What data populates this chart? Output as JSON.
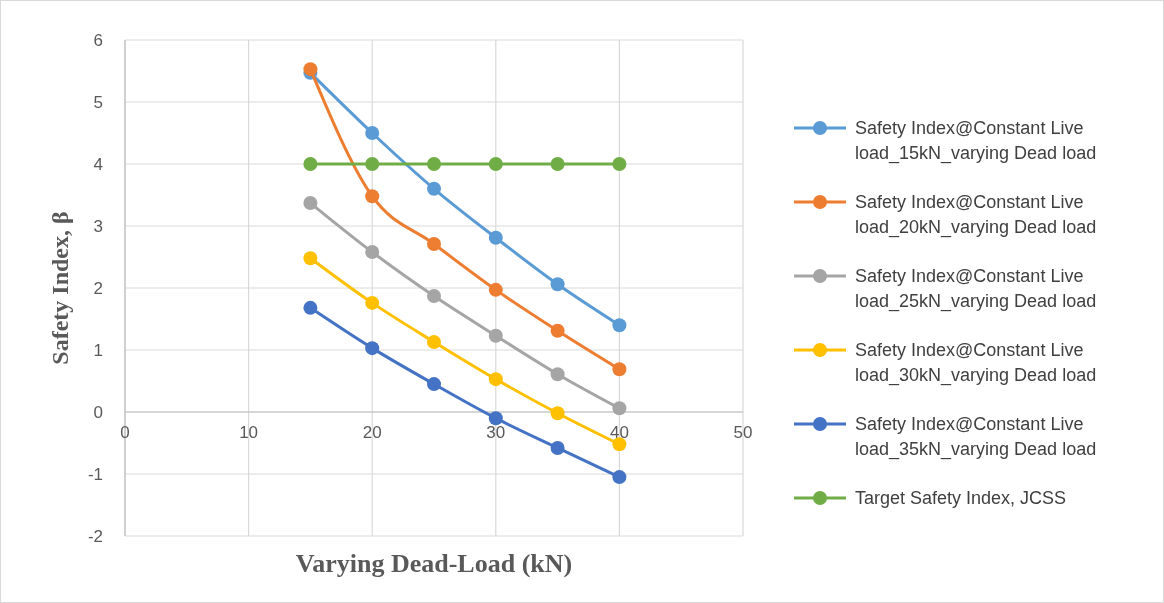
{
  "chart_data": {
    "type": "line",
    "xlabel": "Varying Dead-Load (kN)",
    "ylabel": "Safety Index, β",
    "x": [
      15,
      20,
      25,
      30,
      35,
      40
    ],
    "series": [
      {
        "name": "Safety Index@Constant Live load_15kN_varying Dead load",
        "color": "#5b9bd5",
        "values": [
          5.47,
          4.5,
          3.6,
          2.81,
          2.06,
          1.4
        ]
      },
      {
        "name": "Safety Index@Constant Live load_20kN_varying Dead load",
        "color": "#ed7d31",
        "values": [
          5.53,
          3.48,
          2.71,
          1.97,
          1.31,
          0.69
        ]
      },
      {
        "name": "Safety Index@Constant Live load_25kN_varying Dead load",
        "color": "#a5a5a5",
        "values": [
          3.37,
          2.58,
          1.87,
          1.23,
          0.61,
          0.06
        ]
      },
      {
        "name": "Safety Index@Constant Live load_30kN_varying Dead load",
        "color": "#ffc000",
        "values": [
          2.48,
          1.76,
          1.13,
          0.53,
          -0.02,
          -0.52
        ]
      },
      {
        "name": "Safety Index@Constant Live load_35kN_varying Dead load",
        "color": "#4472c4",
        "values": [
          1.68,
          1.03,
          0.45,
          -0.1,
          -0.58,
          -1.05
        ]
      },
      {
        "name": "Target Safety Index, JCSS",
        "color": "#70ad47",
        "values": [
          4,
          4,
          4,
          4,
          4,
          4
        ]
      }
    ],
    "xlim": [
      0,
      50
    ],
    "xticks": [
      0,
      10,
      20,
      30,
      40,
      50
    ],
    "ylim": [
      -2,
      6
    ],
    "yticks": [
      -2,
      -1,
      0,
      1,
      2,
      3,
      4,
      5,
      6
    ],
    "grid": true,
    "legend": "right",
    "marker": "circle",
    "line_style": "solid"
  }
}
